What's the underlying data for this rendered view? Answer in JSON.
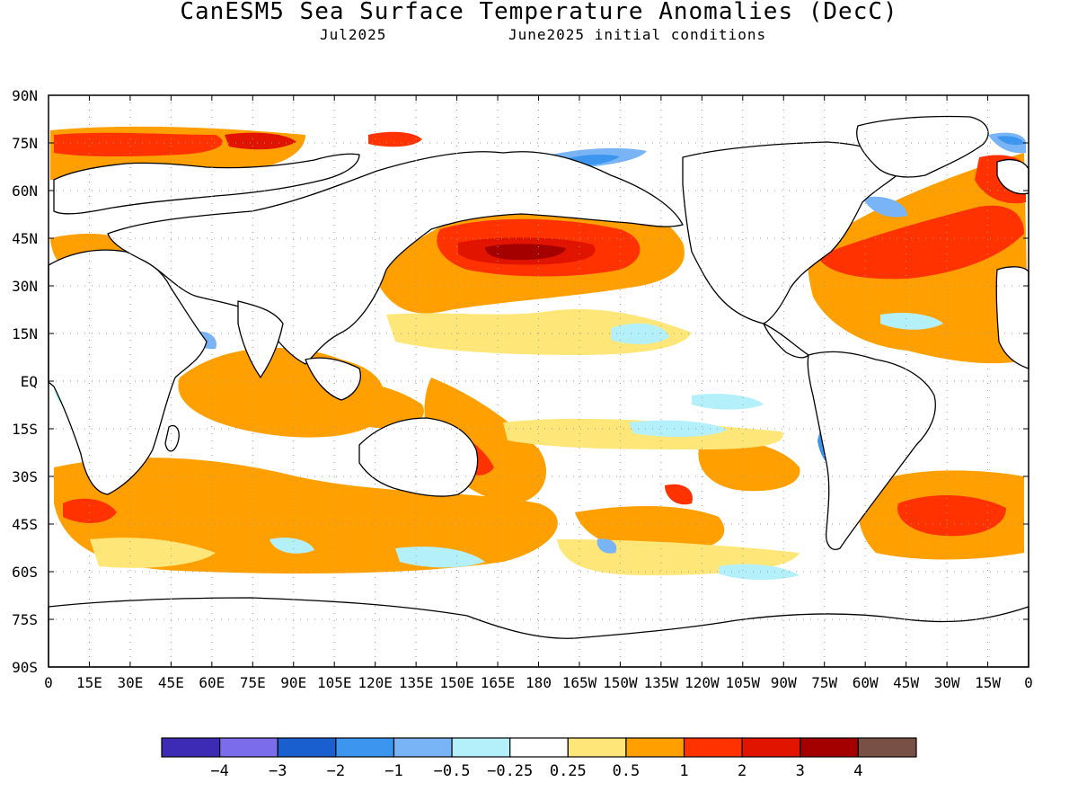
{
  "header": {
    "title": "CanESM5 Sea Surface Temperature Anomalies (DecC)",
    "subtitle_left": "Jul2025",
    "subtitle_right": "June2025 initial conditions"
  },
  "map": {
    "lat_labels": [
      "90N",
      "75N",
      "60N",
      "45N",
      "30N",
      "15N",
      "EQ",
      "15S",
      "30S",
      "45S",
      "60S",
      "75S",
      "90S"
    ],
    "lon_labels": [
      "0",
      "15E",
      "30E",
      "45E",
      "60E",
      "75E",
      "90E",
      "105E",
      "120E",
      "135E",
      "150E",
      "165E",
      "180",
      "165W",
      "150W",
      "135W",
      "120W",
      "105W",
      "90W",
      "75W",
      "60W",
      "45W",
      "30W",
      "15W",
      "0"
    ]
  },
  "colorbar": {
    "colors": [
      "#3e2bb5",
      "#7b6cec",
      "#1a5fcf",
      "#3c96f0",
      "#78b4f6",
      "#b4f0fa",
      "#ffffff",
      "#ffe678",
      "#ffa000",
      "#ff3200",
      "#e11400",
      "#a50000",
      "#785046"
    ],
    "labels": [
      "-4",
      "-3",
      "-2",
      "-1",
      "-0.5",
      "-0.25",
      "0.25",
      "0.5",
      "1",
      "2",
      "3",
      "4"
    ]
  }
}
